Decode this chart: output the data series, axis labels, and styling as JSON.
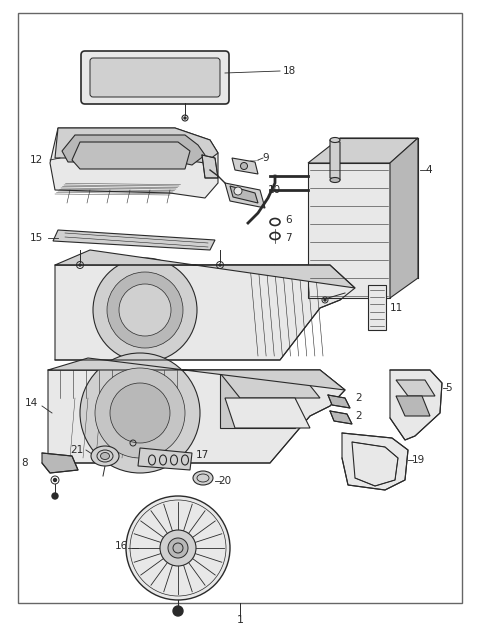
{
  "bg_color": "#ffffff",
  "border_color": "#666666",
  "fig_width": 4.8,
  "fig_height": 6.38,
  "dpi": 100,
  "lc": "#2a2a2a",
  "lc_light": "#555555",
  "fill_light": "#e8e8e8",
  "fill_mid": "#d0d0d0",
  "fill_dark": "#b8b8b8",
  "label_fs": 7.5,
  "title": "1"
}
